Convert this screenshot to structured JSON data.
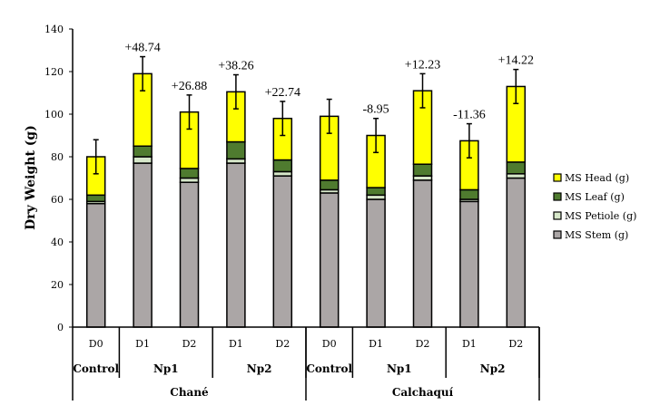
{
  "chart_data": {
    "type": "bar",
    "stacked": true,
    "title": "",
    "ylabel": "Dry Weight (g)",
    "xlabel": "",
    "ylim": [
      0,
      140
    ],
    "yticks": [
      0,
      20,
      40,
      60,
      80,
      100,
      120,
      140
    ],
    "grid": false,
    "legend_position": "right",
    "categories": [
      "D0",
      "D1",
      "D2",
      "D1",
      "D2",
      "D0",
      "D1",
      "D2",
      "D1",
      "D2"
    ],
    "treatment_groups": [
      {
        "label": "Control",
        "span": 1
      },
      {
        "label": "Np1",
        "span": 2
      },
      {
        "label": "Np2",
        "span": 2
      },
      {
        "label": "Control",
        "span": 1
      },
      {
        "label": "Np1",
        "span": 2
      },
      {
        "label": "Np2",
        "span": 2
      }
    ],
    "cultivar_groups": [
      {
        "label": "Chané",
        "span": 5
      },
      {
        "label": "Calchaquí",
        "span": 5
      }
    ],
    "series": [
      {
        "name": "MS Stem (g)",
        "color": "#aba6a6",
        "values": [
          58,
          77,
          68,
          77,
          71,
          63,
          60,
          69,
          59,
          70
        ]
      },
      {
        "name": "MS Petiole (g)",
        "color": "#d6e7c9",
        "values": [
          1,
          3,
          2,
          2,
          2,
          1.5,
          2,
          2,
          1,
          2
        ]
      },
      {
        "name": "MS Leaf (g)",
        "color": "#4f7b2f",
        "values": [
          3,
          5,
          4.5,
          8,
          5.5,
          4.5,
          3.5,
          5.5,
          4.5,
          5.5
        ]
      },
      {
        "name": "MS Head (g)",
        "color": "#ffff00",
        "values": [
          18,
          34,
          26.5,
          23.5,
          19.5,
          30,
          24.5,
          34.5,
          23,
          35.5
        ]
      }
    ],
    "error": [
      8,
      8,
      8,
      8,
      8,
      8,
      8,
      8,
      8,
      8
    ],
    "annotations": [
      "",
      "+48.74",
      "+26.88",
      "+38.26",
      "+22.74",
      "",
      "-8.95",
      "+12.23",
      "-11.36",
      "+14.22"
    ],
    "legend_order": [
      "MS Head (g)",
      "MS Leaf (g)",
      "MS Petiole (g)",
      "MS Stem (g)"
    ]
  }
}
